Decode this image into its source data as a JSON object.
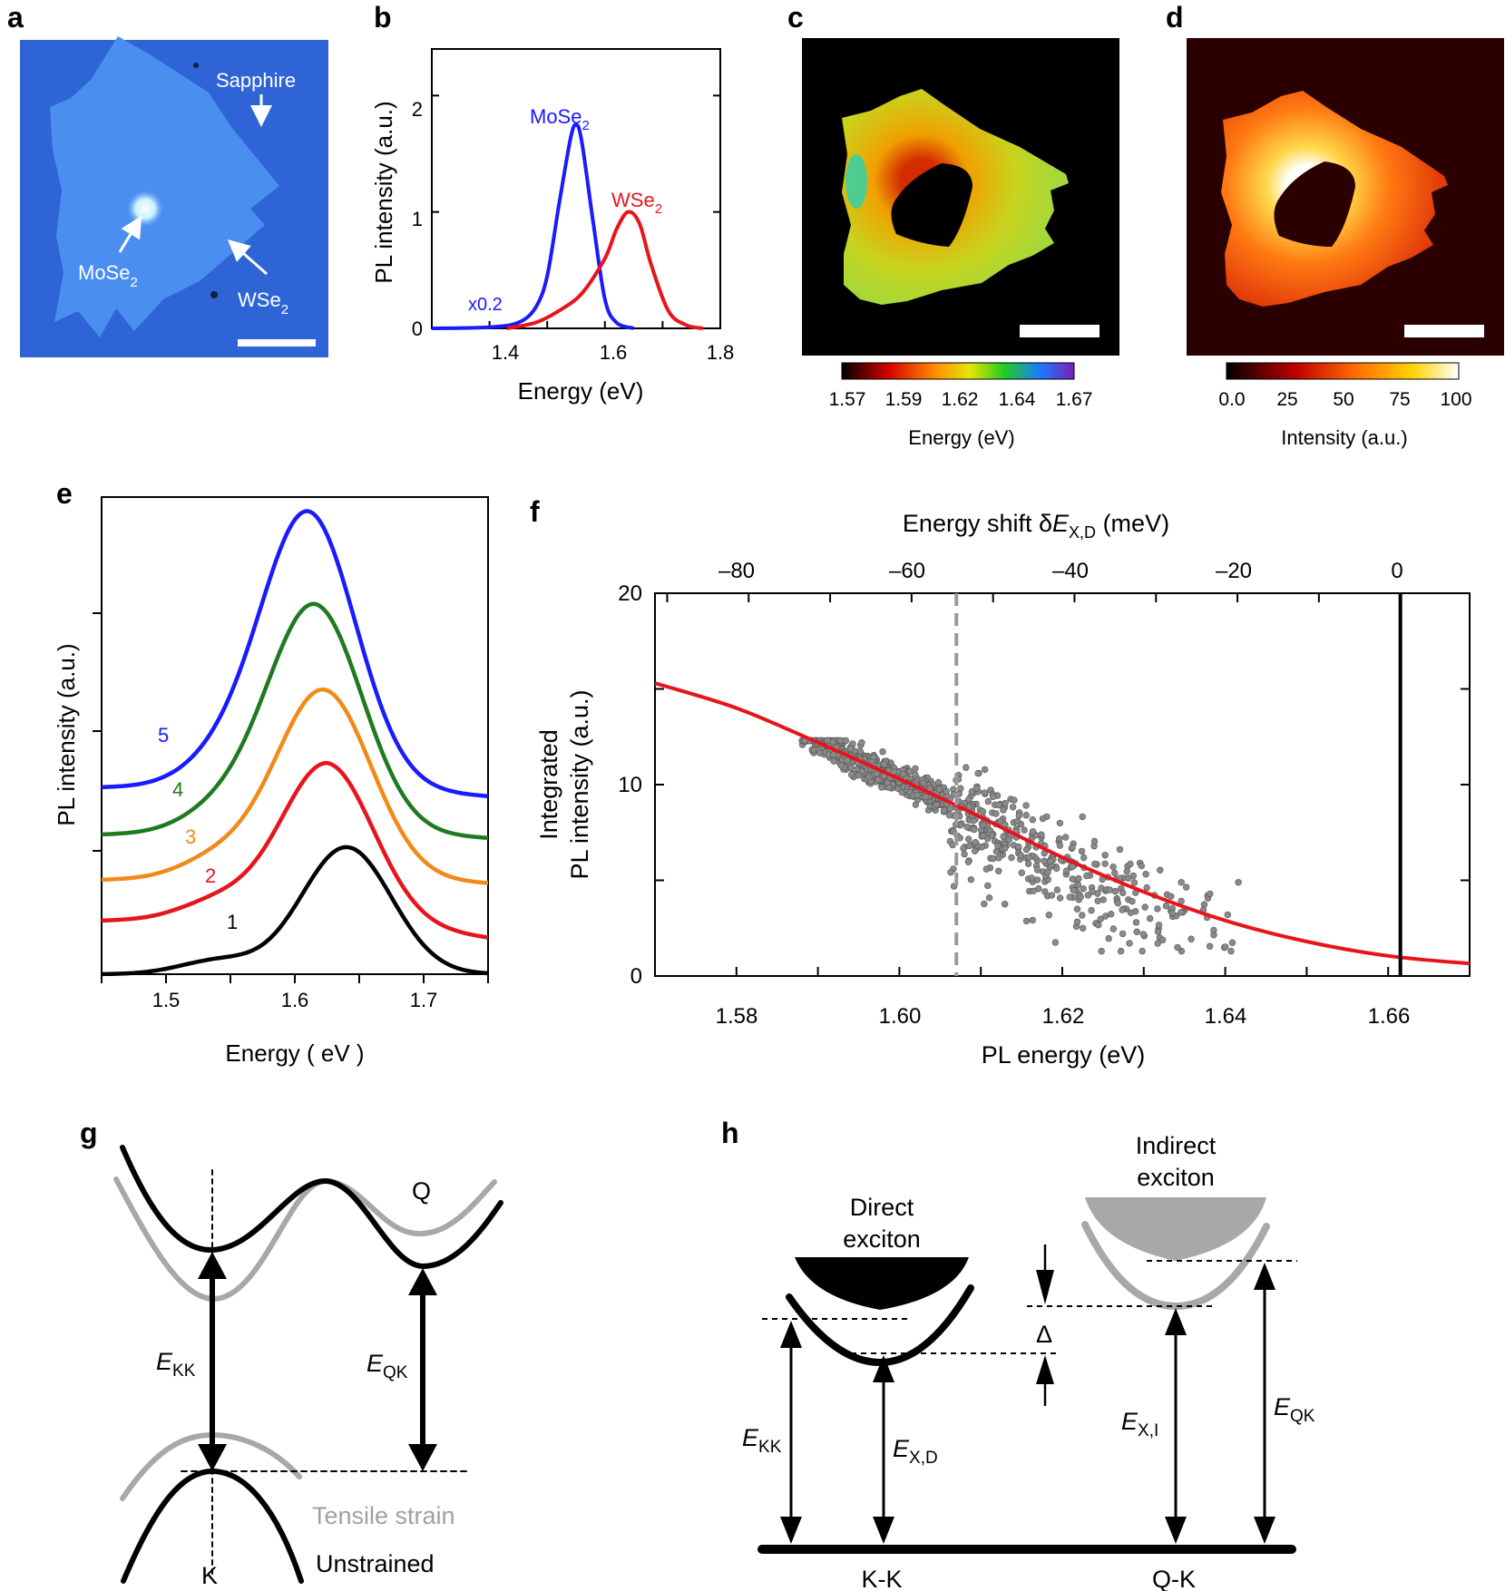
{
  "figure": {
    "panel_labels": [
      "a",
      "b",
      "c",
      "d",
      "e",
      "f",
      "g",
      "h"
    ],
    "colors": {
      "mose2": "#1a1aff",
      "wse2": "#e8141b",
      "fit": "#e8141b",
      "dots": "#7a7a7a",
      "sapphire": "#2f64d6",
      "flake": "#3d82ea"
    },
    "panel_a": {
      "labels": {
        "sapphire": "Sapphire",
        "mose2": "MoSe",
        "wse2": "WSe",
        "sub": "2"
      }
    },
    "panel_b": {
      "xlabel": "Energy (eV)",
      "ylabel": "PL intensity (a.u.)",
      "mose2_label": "MoSe",
      "wse2_label": "WSe",
      "sub": "2",
      "scale_note": "x0.2",
      "xticks": [
        "1.4",
        "1.6",
        "1.8"
      ],
      "yticks": [
        "0",
        "1",
        "2"
      ]
    },
    "panel_c": {
      "colorbar_ticks": [
        "1.57",
        "1.59",
        "1.62",
        "1.64",
        "1.67"
      ],
      "colorbar_label": "Energy (eV)"
    },
    "panel_d": {
      "colorbar_ticks": [
        "0.0",
        "25",
        "50",
        "75",
        "100"
      ],
      "colorbar_label": "Intensity (a.u.)"
    },
    "panel_e": {
      "xlabel": "Energy  ( eV )",
      "ylabel": "PL intensity (a.u.)",
      "xticks": [
        "1.5",
        "1.6",
        "1.7"
      ],
      "curve_labels": [
        "1",
        "2",
        "3",
        "4",
        "5"
      ]
    },
    "panel_f": {
      "top_label_pre": "Energy shift δ",
      "top_label_E": "E",
      "top_label_sub": "X,D",
      "top_label_post": " (meV)",
      "top_ticks": [
        "–80",
        "–60",
        "–40",
        "–20",
        "0"
      ],
      "ylabel_1": "Integrated",
      "ylabel_2": "PL intensity (a.u.)",
      "yticks": [
        "0",
        "10",
        "20"
      ],
      "xlabel": "PL energy (eV)",
      "xticks": [
        "1.58",
        "1.60",
        "1.62",
        "1.64",
        "1.66"
      ]
    },
    "panel_g": {
      "k_label": "K",
      "q_label": "Q",
      "ekk": "E",
      "ekk_sub": "KK",
      "eqk": "E",
      "eqk_sub": "QK",
      "tensile": "Tensile strain",
      "unstrained": "Unstrained"
    },
    "panel_h": {
      "direct_1": "Direct",
      "direct_2": "exciton",
      "indirect_1": "Indirect",
      "indirect_2": "exciton",
      "delta": "Δ",
      "e": "E",
      "ekk_sub": "KK",
      "exd_sub": "X,D",
      "exi_sub": "X,I",
      "eqk_sub": "QK",
      "kk": "K-K",
      "qk": "Q-K"
    }
  },
  "chart_data": [
    {
      "type": "line",
      "panel": "b",
      "title": "",
      "xlabel": "Energy (eV)",
      "ylabel": "PL intensity (a.u.)",
      "xlim": [
        1.3,
        1.8
      ],
      "ylim": [
        0,
        2.4
      ],
      "series": [
        {
          "name": "MoSe2 (x0.2)",
          "color": "#1a1aff",
          "x": [
            1.3,
            1.4,
            1.45,
            1.48,
            1.5,
            1.52,
            1.54,
            1.55,
            1.56,
            1.58,
            1.6,
            1.62,
            1.65
          ],
          "y": [
            0.0,
            0.01,
            0.05,
            0.18,
            0.45,
            1.05,
            1.62,
            1.75,
            1.6,
            0.9,
            0.25,
            0.05,
            0.0
          ]
        },
        {
          "name": "WSe2",
          "color": "#e8141b",
          "x": [
            1.43,
            1.48,
            1.52,
            1.56,
            1.6,
            1.62,
            1.64,
            1.66,
            1.68,
            1.71,
            1.74,
            1.77
          ],
          "y": [
            0.0,
            0.05,
            0.15,
            0.3,
            0.6,
            0.85,
            1.0,
            0.9,
            0.55,
            0.15,
            0.03,
            0.0
          ]
        }
      ]
    },
    {
      "type": "line",
      "panel": "e",
      "xlabel": "Energy  ( eV )",
      "ylabel": "PL intensity (a.u.)",
      "xlim": [
        1.45,
        1.75
      ],
      "series": [
        {
          "name": "1",
          "color": "#000000",
          "peak_eV": 1.64
        },
        {
          "name": "2",
          "color": "#e8141b",
          "peak_eV": 1.625
        },
        {
          "name": "3",
          "color": "#f28a1a",
          "peak_eV": 1.622
        },
        {
          "name": "4",
          "color": "#1f7a1f",
          "peak_eV": 1.615
        },
        {
          "name": "5",
          "color": "#1a1aff",
          "peak_eV": 1.61
        }
      ]
    },
    {
      "type": "scatter",
      "panel": "f",
      "xlabel": "PL energy (eV)",
      "ylabel": "Integrated PL intensity (a.u.)",
      "xlim": [
        1.57,
        1.67
      ],
      "ylim": [
        0,
        20
      ],
      "top_axis": {
        "label": "Energy shift δE_X,D (meV)",
        "range": [
          -91.5,
          8.5
        ]
      },
      "fit": {
        "x": [
          1.57,
          1.58,
          1.59,
          1.6,
          1.61,
          1.62,
          1.63,
          1.64,
          1.65,
          1.66,
          1.67
        ],
        "y": [
          15.3,
          14.0,
          12.2,
          10.3,
          8.3,
          6.2,
          4.4,
          2.9,
          1.8,
          1.05,
          0.65
        ]
      },
      "scatter_cloud": {
        "x_range": [
          1.588,
          1.644
        ],
        "y_range": [
          1.3,
          12.3
        ]
      },
      "dashed_line_x": 1.607,
      "solid_line_x": 1.6615
    }
  ]
}
